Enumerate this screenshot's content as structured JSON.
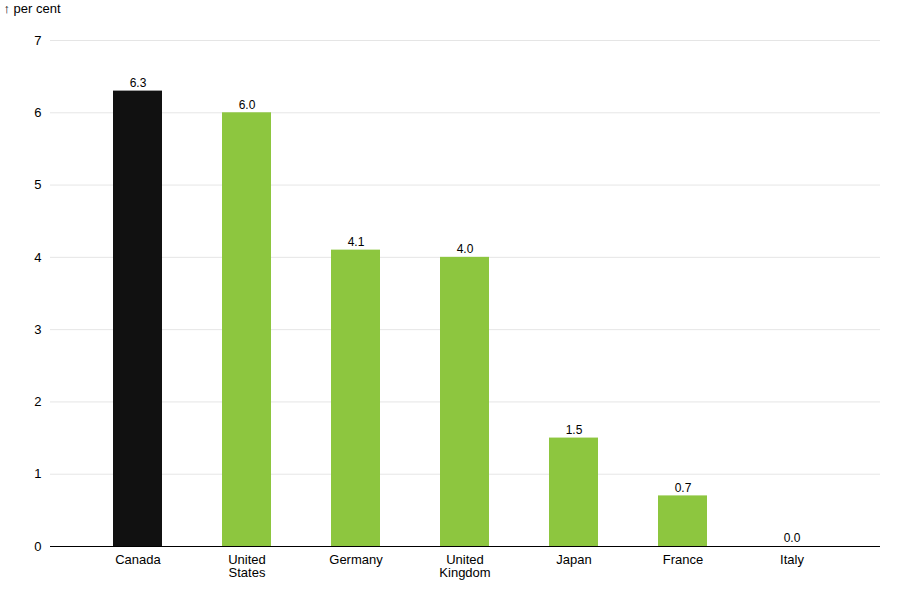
{
  "chart_data": {
    "type": "bar",
    "categories": [
      "Canada",
      "United\nStates",
      "Germany",
      "United\nKingdom",
      "Japan",
      "France",
      "Italy"
    ],
    "values": [
      6.3,
      6.0,
      4.1,
      4.0,
      1.5,
      0.7,
      0.0
    ],
    "value_labels": [
      "6.3",
      "6.0",
      "4.1",
      "4.0",
      "1.5",
      "0.7",
      "0.0"
    ],
    "colors": [
      "#111111",
      "#8dc63f",
      "#8dc63f",
      "#8dc63f",
      "#8dc63f",
      "#8dc63f",
      "#8dc63f"
    ],
    "ylabel": "per cent",
    "ylim": [
      0,
      7
    ],
    "yticks": [
      0,
      1,
      2,
      3,
      4,
      5,
      6,
      7
    ],
    "grid": true,
    "data_labels": true
  }
}
